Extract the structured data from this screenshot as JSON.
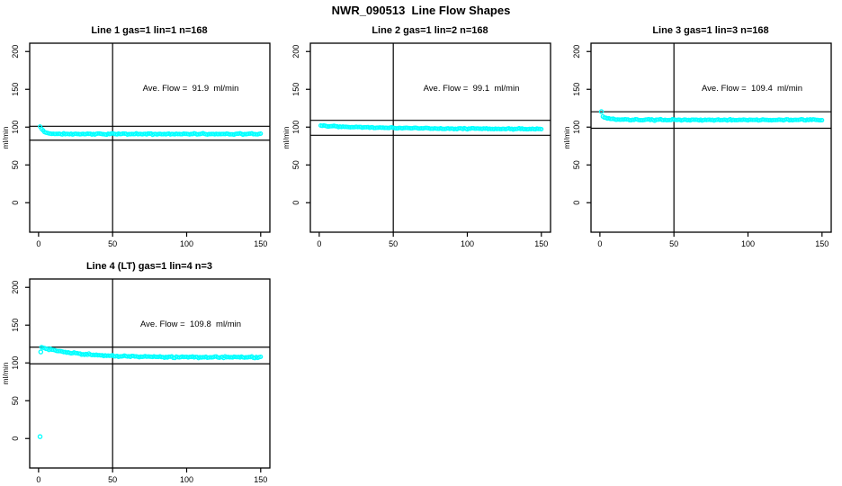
{
  "window": {
    "background": "#ffffff"
  },
  "header": {
    "main_title": "NWR_090513  Line Flow Shapes"
  },
  "axes_shared": {
    "xticks": [
      0,
      50,
      100,
      150
    ],
    "yticks": [
      0,
      50,
      100,
      150,
      200
    ],
    "xlim": [
      0,
      150
    ],
    "ylim": [
      0,
      200
    ],
    "ylabel": "ml/min",
    "vline_x": 50,
    "point_color": "#00FFFF",
    "axis_color": "#000000",
    "grid": false
  },
  "chart_data": [
    {
      "type": "scatter",
      "panel": 1,
      "title": "Line 1 gas=1 lin=1 n=168",
      "annotation": "Ave. Flow =  91.9  ml/min",
      "ave_flow_ml_min": 91.9,
      "n": 168,
      "hlines": [
        101.1,
        82.7
      ],
      "vline": 50,
      "series_profile": {
        "x_start": 1,
        "x_end": 150,
        "y_initial": 100.5,
        "y_steady": 90.9,
        "decay_tau": 2.5,
        "scatter": 0.9
      },
      "outliers": []
    },
    {
      "type": "scatter",
      "panel": 2,
      "title": "Line 2 gas=1 lin=2 n=168",
      "annotation": "Ave. Flow =  99.1  ml/min",
      "ave_flow_ml_min": 99.1,
      "n": 168,
      "hlines": [
        109.0,
        89.2
      ],
      "vline": 50,
      "series_profile": {
        "x_start": 1,
        "x_end": 150,
        "y_initial": 102.0,
        "y_steady": 97.4,
        "decay_tau": 45,
        "scatter": 0.8
      },
      "outliers": []
    },
    {
      "type": "scatter",
      "panel": 3,
      "title": "Line 3 gas=1 lin=3 n=168",
      "annotation": "Ave. Flow =  109.4  ml/min",
      "ave_flow_ml_min": 109.4,
      "n": 168,
      "hlines": [
        120.3,
        98.5
      ],
      "vline": 50,
      "series_profile": {
        "x_start": 2,
        "x_end": 150,
        "y_initial": 113.5,
        "y_steady": 109.5,
        "decay_tau": 5,
        "scatter": 0.9
      },
      "outliers": [
        [
          1,
          120.5
        ]
      ]
    },
    {
      "type": "scatter",
      "panel": 4,
      "title": "Line 4 (LT) gas=1 lin=4 n=3",
      "annotation": "Ave. Flow =  109.8  ml/min",
      "ave_flow_ml_min": 109.8,
      "n": 3,
      "hlines": [
        120.8,
        98.8
      ],
      "vline": 50,
      "series_profile": {
        "x_start": 2,
        "x_end": 150,
        "y_initial": 120.5,
        "y_steady": 107.4,
        "decay_tau": 25,
        "scatter": 1.1
      },
      "outliers": [
        [
          1,
          2.5
        ],
        [
          1.5,
          114.5
        ]
      ]
    }
  ]
}
